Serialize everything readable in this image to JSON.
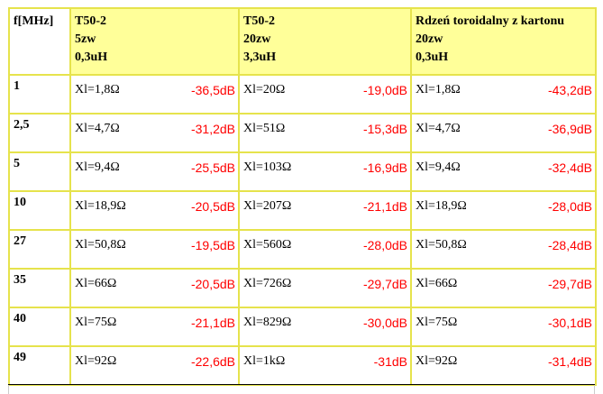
{
  "header": {
    "freq": "f[MHz]",
    "columns": [
      {
        "lines": [
          "T50-2",
          "5zw",
          "0,3uH"
        ]
      },
      {
        "lines": [
          "T50-2",
          "20zw",
          "3,3uH"
        ]
      },
      {
        "lines": [
          "Rdzeń toroidalny z kartonu",
          "20zw",
          "0,3uH"
        ]
      }
    ]
  },
  "rows": [
    {
      "f": "1",
      "cells": [
        [
          "Xl=1,8Ω",
          "-36,5dB"
        ],
        [
          "Xl=20Ω",
          "-19,0dB"
        ],
        [
          "Xl=1,8Ω",
          "-43,2dB"
        ]
      ]
    },
    {
      "f": "2,5",
      "cells": [
        [
          "Xl=4,7Ω",
          "-31,2dB"
        ],
        [
          "Xl=51Ω",
          "-15,3dB"
        ],
        [
          "Xl=4,7Ω",
          "-36,9dB"
        ]
      ]
    },
    {
      "f": "5",
      "cells": [
        [
          "Xl=9,4Ω",
          "-25,5dB"
        ],
        [
          "Xl=103Ω",
          "-16,9dB"
        ],
        [
          "Xl=9,4Ω",
          "-32,4dB"
        ]
      ]
    },
    {
      "f": "10",
      "cells": [
        [
          "Xl=18,9Ω",
          "-20,5dB"
        ],
        [
          "Xl=207Ω",
          "-21,1dB"
        ],
        [
          "Xl=18,9Ω",
          "-28,0dB"
        ]
      ]
    },
    {
      "f": "27",
      "cells": [
        [
          "Xl=50,8Ω",
          "-19,5dB"
        ],
        [
          "Xl=560Ω",
          "-28,0dB"
        ],
        [
          "Xl=50,8Ω",
          "-28,4dB"
        ]
      ]
    },
    {
      "f": "35",
      "cells": [
        [
          "Xl=66Ω",
          "-20,5dB"
        ],
        [
          "Xl=726Ω",
          "-29,7dB"
        ],
        [
          "Xl=66Ω",
          "-29,7dB"
        ]
      ]
    },
    {
      "f": "40",
      "cells": [
        [
          "Xl=75Ω",
          "-21,1dB"
        ],
        [
          "Xl=829Ω",
          "-30,0dB"
        ],
        [
          "Xl=75Ω",
          "-30,1dB"
        ]
      ]
    },
    {
      "f": "49",
      "cells": [
        [
          "Xl=92Ω",
          "-22,6dB"
        ],
        [
          "Xl=1kΩ",
          "-31dB"
        ],
        [
          "Xl=92Ω",
          "-31,4dB"
        ]
      ]
    }
  ],
  "colors": {
    "border": "#e6e34c",
    "header_fill": "#ffff99",
    "db_text": "#ff0000"
  }
}
